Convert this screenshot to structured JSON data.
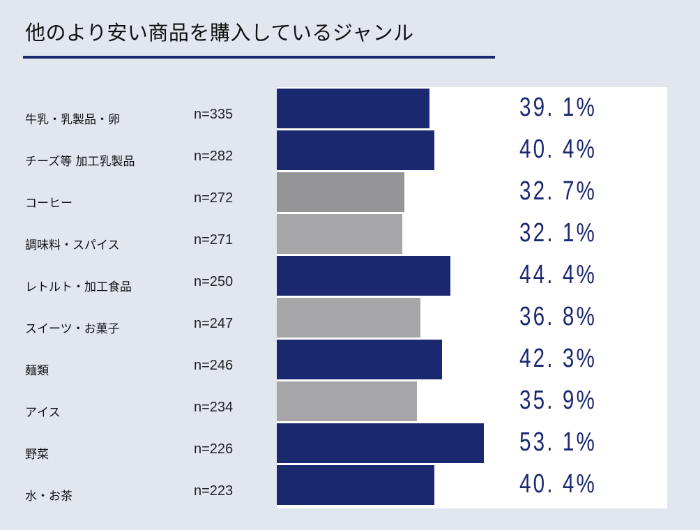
{
  "chart_data": {
    "type": "bar",
    "orientation": "horizontal",
    "title": "他のより安い商品を購入しているジャンル",
    "categories": [
      "牛乳・乳製品・卵",
      "チーズ等 加工乳製品",
      "コーヒー",
      "調味料・スパイス",
      "レトルト・加工食品",
      "スイーツ・お菓子",
      "麺類",
      "アイス",
      "野菜",
      "水・お茶"
    ],
    "n_labels": [
      "n=335",
      "n=282",
      "n=272",
      "n=271",
      "n=250",
      "n=247",
      "n=246",
      "n=234",
      "n=226",
      "n=223"
    ],
    "values": [
      39.1,
      40.4,
      32.7,
      32.1,
      44.4,
      36.8,
      42.3,
      35.9,
      53.1,
      40.4
    ],
    "value_labels": [
      "39. 1%",
      "40. 4%",
      "32. 7%",
      "32. 1%",
      "44. 4%",
      "36. 8%",
      "42. 3%",
      "35. 9%",
      "53. 1%",
      "40. 4%"
    ],
    "highlight": [
      true,
      true,
      false,
      false,
      true,
      false,
      true,
      false,
      true,
      true
    ],
    "colors": {
      "highlight": "#1a2870",
      "other": "#a6a5a8",
      "other_dark": "#959497",
      "label": "#1a2870"
    },
    "xlim": [
      0,
      100
    ],
    "xlabel": "",
    "ylabel": "",
    "grid": false
  }
}
